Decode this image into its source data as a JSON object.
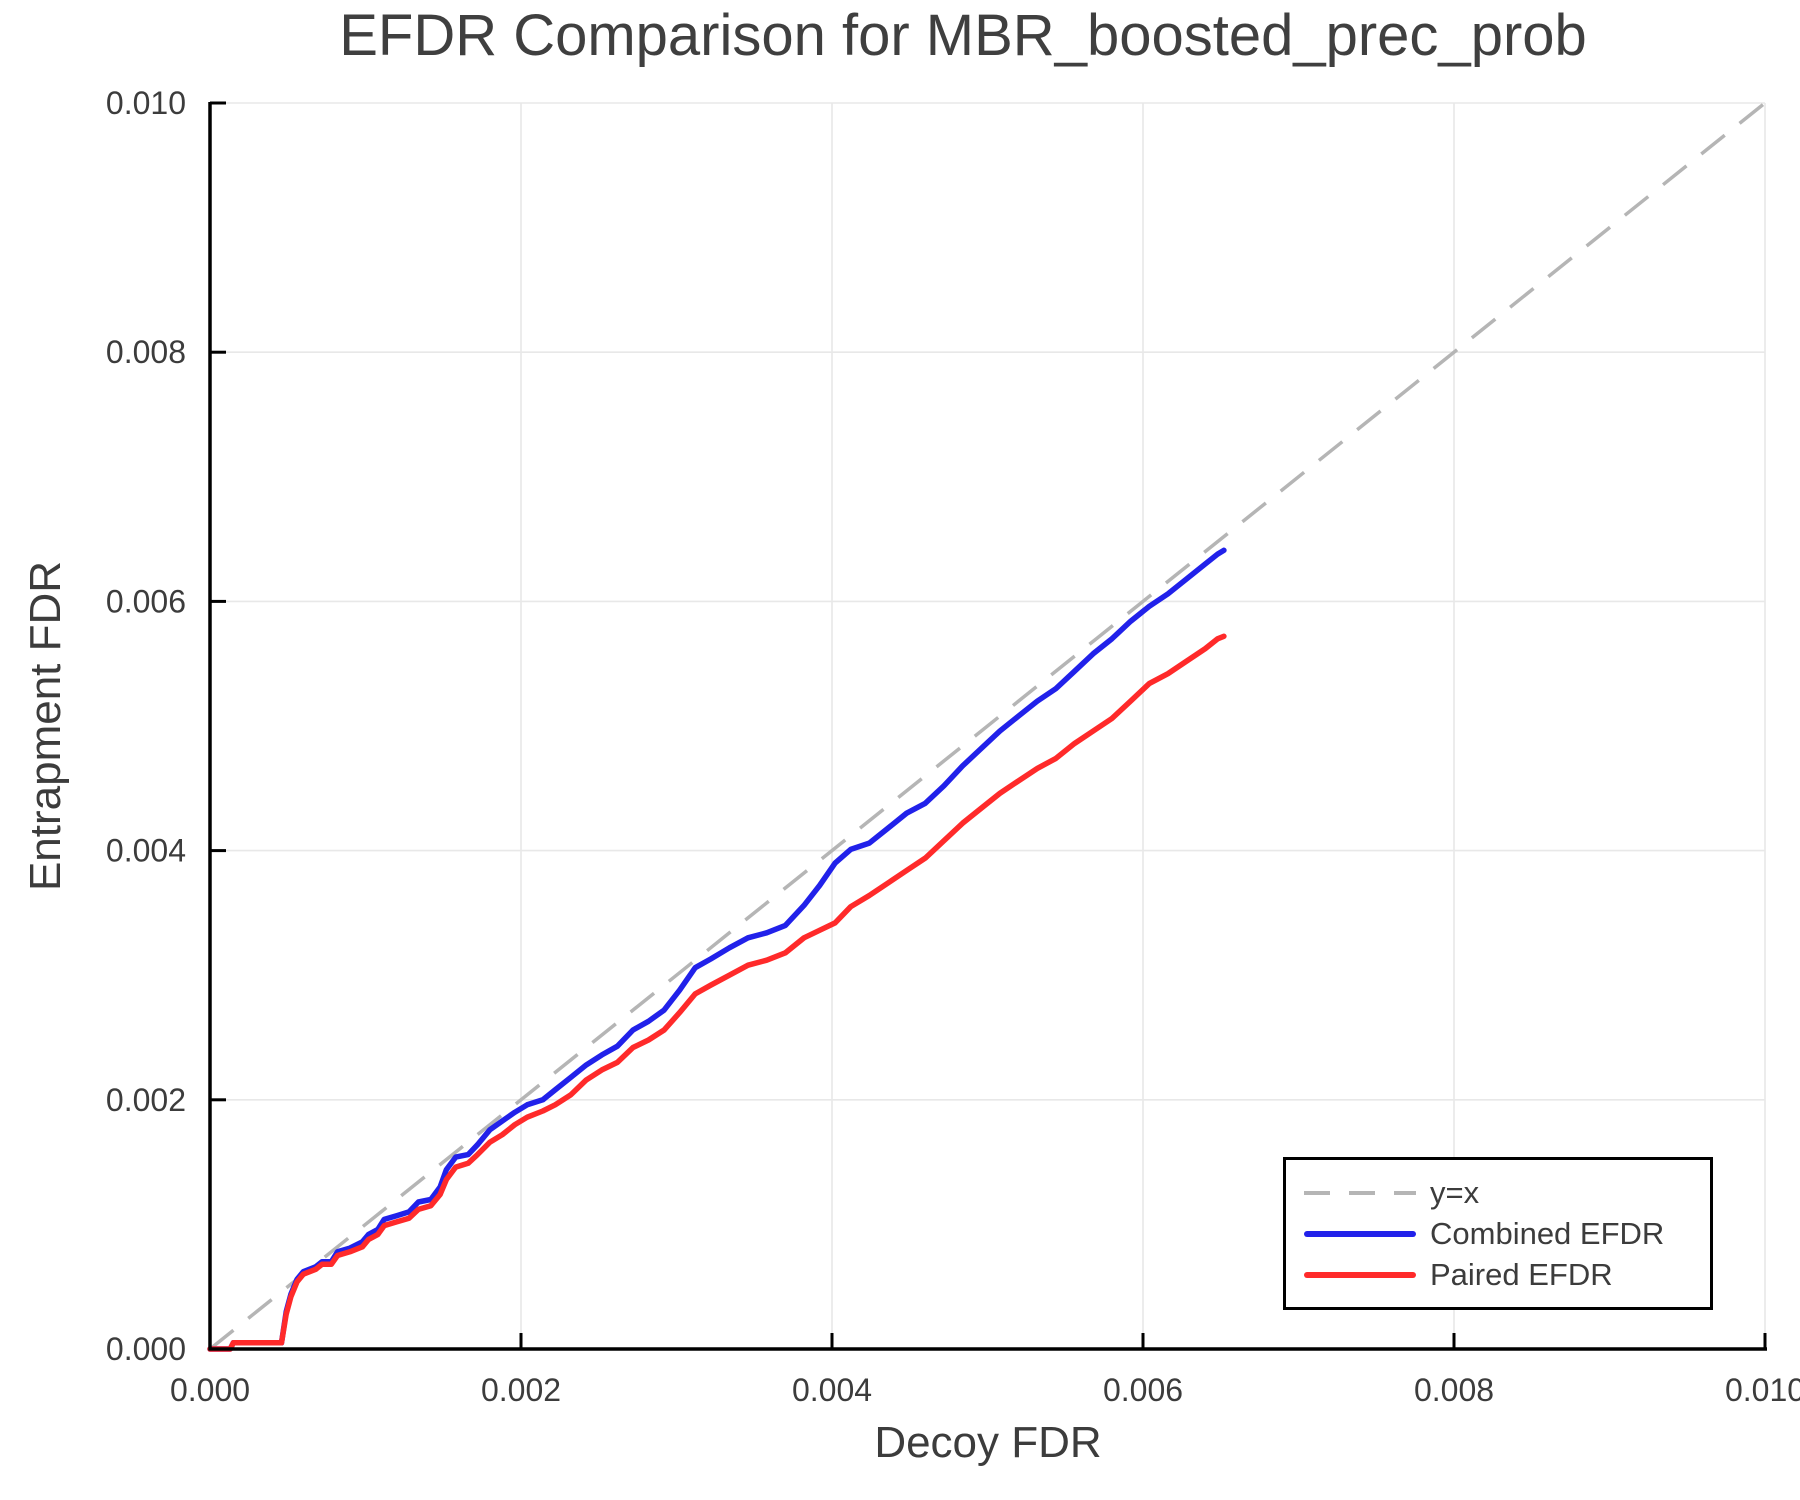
{
  "title": "EFDR Comparison for MBR_boosted_prec_prob",
  "chart_data": {
    "type": "line",
    "title": "EFDR Comparison for MBR_boosted_prec_prob",
    "xlabel": "Decoy FDR",
    "ylabel": "Entrapment FDR",
    "xlim": [
      0.0,
      0.01
    ],
    "ylim": [
      0.0,
      0.01
    ],
    "x_tick_values": [
      0.0,
      0.002,
      0.004,
      0.006,
      0.008,
      0.01
    ],
    "x_tick_labels": [
      "0.000",
      "0.002",
      "0.004",
      "0.006",
      "0.008",
      "0.010"
    ],
    "y_tick_values": [
      0.0,
      0.002,
      0.004,
      0.006,
      0.008,
      0.01
    ],
    "y_tick_labels": [
      "0.000",
      "0.002",
      "0.004",
      "0.006",
      "0.008",
      "0.010"
    ],
    "grid": true,
    "grid_color": "#e8e8e8",
    "legend_position": "lower right",
    "text_color": "#3c3c3c",
    "series": [
      {
        "name": "y=x",
        "style": "dashed",
        "color": "#b5b5b5",
        "points": [
          [
            0.0,
            0.0
          ],
          [
            0.01,
            0.01
          ]
        ]
      },
      {
        "name": "Combined EFDR",
        "style": "solid",
        "color": "#2121ea",
        "points": [
          [
            0.0,
            0.0
          ],
          [
            0.00013,
            0.0
          ],
          [
            0.00015,
            5e-05
          ],
          [
            0.00046,
            5e-05
          ],
          [
            0.00049,
            0.0003
          ],
          [
            0.00052,
            0.00044
          ],
          [
            0.00056,
            0.00056
          ],
          [
            0.0006,
            0.00062
          ],
          [
            0.00068,
            0.00066
          ],
          [
            0.00072,
            0.0007
          ],
          [
            0.00078,
            0.0007
          ],
          [
            0.00082,
            0.00078
          ],
          [
            0.0009,
            0.00081
          ],
          [
            0.00098,
            0.00086
          ],
          [
            0.00102,
            0.00092
          ],
          [
            0.00108,
            0.00096
          ],
          [
            0.00112,
            0.00104
          ],
          [
            0.0012,
            0.00107
          ],
          [
            0.00128,
            0.0011
          ],
          [
            0.00134,
            0.00118
          ],
          [
            0.00142,
            0.0012
          ],
          [
            0.00148,
            0.0013
          ],
          [
            0.00152,
            0.00144
          ],
          [
            0.00158,
            0.00154
          ],
          [
            0.00166,
            0.00156
          ],
          [
            0.00172,
            0.00164
          ],
          [
            0.0018,
            0.00176
          ],
          [
            0.00188,
            0.00183
          ],
          [
            0.00196,
            0.0019
          ],
          [
            0.00204,
            0.00196
          ],
          [
            0.00214,
            0.002
          ],
          [
            0.00222,
            0.00208
          ],
          [
            0.00232,
            0.00218
          ],
          [
            0.00242,
            0.00228
          ],
          [
            0.00252,
            0.00236
          ],
          [
            0.00262,
            0.00243
          ],
          [
            0.00272,
            0.00256
          ],
          [
            0.00282,
            0.00263
          ],
          [
            0.00292,
            0.00272
          ],
          [
            0.00302,
            0.00288
          ],
          [
            0.00312,
            0.00306
          ],
          [
            0.00322,
            0.00313
          ],
          [
            0.00334,
            0.00322
          ],
          [
            0.00346,
            0.0033
          ],
          [
            0.00358,
            0.00334
          ],
          [
            0.0037,
            0.0034
          ],
          [
            0.00382,
            0.00356
          ],
          [
            0.00392,
            0.00372
          ],
          [
            0.00402,
            0.0039
          ],
          [
            0.00412,
            0.00401
          ],
          [
            0.00424,
            0.00406
          ],
          [
            0.00436,
            0.00418
          ],
          [
            0.00448,
            0.0043
          ],
          [
            0.0046,
            0.00438
          ],
          [
            0.00472,
            0.00452
          ],
          [
            0.00484,
            0.00468
          ],
          [
            0.00496,
            0.00482
          ],
          [
            0.00508,
            0.00496
          ],
          [
            0.0052,
            0.00508
          ],
          [
            0.00532,
            0.0052
          ],
          [
            0.00544,
            0.0053
          ],
          [
            0.00556,
            0.00544
          ],
          [
            0.00568,
            0.00558
          ],
          [
            0.0058,
            0.0057
          ],
          [
            0.00592,
            0.00584
          ],
          [
            0.00604,
            0.00596
          ],
          [
            0.00616,
            0.00606
          ],
          [
            0.00628,
            0.00618
          ],
          [
            0.0064,
            0.0063
          ],
          [
            0.00648,
            0.00638
          ],
          [
            0.00652,
            0.00641
          ]
        ]
      },
      {
        "name": "Paired EFDR",
        "style": "solid",
        "color": "#ff2a2a",
        "points": [
          [
            0.0,
            0.0
          ],
          [
            0.00013,
            0.0
          ],
          [
            0.00015,
            5e-05
          ],
          [
            0.00046,
            5e-05
          ],
          [
            0.00049,
            0.00028
          ],
          [
            0.00052,
            0.00042
          ],
          [
            0.00056,
            0.00054
          ],
          [
            0.0006,
            0.0006
          ],
          [
            0.00068,
            0.00064
          ],
          [
            0.00072,
            0.00068
          ],
          [
            0.00078,
            0.00068
          ],
          [
            0.00082,
            0.00075
          ],
          [
            0.0009,
            0.00078
          ],
          [
            0.00098,
            0.00082
          ],
          [
            0.00102,
            0.00088
          ],
          [
            0.00108,
            0.00092
          ],
          [
            0.00112,
            0.00099
          ],
          [
            0.0012,
            0.00102
          ],
          [
            0.00128,
            0.00105
          ],
          [
            0.00134,
            0.00112
          ],
          [
            0.00142,
            0.00115
          ],
          [
            0.00148,
            0.00124
          ],
          [
            0.00152,
            0.00136
          ],
          [
            0.00158,
            0.00146
          ],
          [
            0.00166,
            0.00149
          ],
          [
            0.00172,
            0.00156
          ],
          [
            0.0018,
            0.00166
          ],
          [
            0.00188,
            0.00172
          ],
          [
            0.00196,
            0.0018
          ],
          [
            0.00204,
            0.00186
          ],
          [
            0.00214,
            0.00191
          ],
          [
            0.00222,
            0.00196
          ],
          [
            0.00232,
            0.00204
          ],
          [
            0.00242,
            0.00216
          ],
          [
            0.00252,
            0.00224
          ],
          [
            0.00262,
            0.0023
          ],
          [
            0.00272,
            0.00242
          ],
          [
            0.00282,
            0.00248
          ],
          [
            0.00292,
            0.00256
          ],
          [
            0.00302,
            0.0027
          ],
          [
            0.00312,
            0.00285
          ],
          [
            0.00322,
            0.00292
          ],
          [
            0.00334,
            0.003
          ],
          [
            0.00346,
            0.00308
          ],
          [
            0.00358,
            0.00312
          ],
          [
            0.0037,
            0.00318
          ],
          [
            0.00382,
            0.0033
          ],
          [
            0.00392,
            0.00336
          ],
          [
            0.00402,
            0.00342
          ],
          [
            0.00412,
            0.00355
          ],
          [
            0.00424,
            0.00364
          ],
          [
            0.00436,
            0.00374
          ],
          [
            0.00448,
            0.00384
          ],
          [
            0.0046,
            0.00394
          ],
          [
            0.00472,
            0.00408
          ],
          [
            0.00484,
            0.00422
          ],
          [
            0.00496,
            0.00434
          ],
          [
            0.00508,
            0.00446
          ],
          [
            0.0052,
            0.00456
          ],
          [
            0.00532,
            0.00466
          ],
          [
            0.00544,
            0.00474
          ],
          [
            0.00556,
            0.00486
          ],
          [
            0.00568,
            0.00496
          ],
          [
            0.0058,
            0.00506
          ],
          [
            0.00592,
            0.0052
          ],
          [
            0.00604,
            0.00534
          ],
          [
            0.00616,
            0.00542
          ],
          [
            0.00628,
            0.00552
          ],
          [
            0.0064,
            0.00562
          ],
          [
            0.00648,
            0.0057
          ],
          [
            0.00652,
            0.00572
          ]
        ]
      }
    ]
  }
}
